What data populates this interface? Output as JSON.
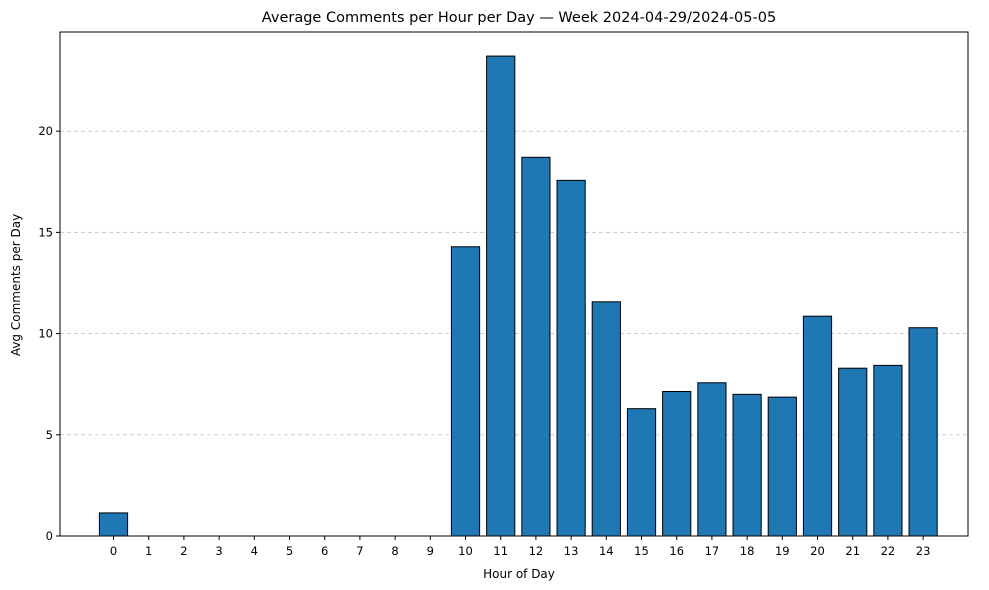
{
  "chart_data": {
    "type": "bar",
    "title": "Average Comments per Hour per Day — Week 2024-04-29/2024-05-05",
    "xlabel": "Hour of Day",
    "ylabel": "Avg Comments per Day",
    "categories": [
      "0",
      "1",
      "2",
      "3",
      "4",
      "5",
      "6",
      "7",
      "8",
      "9",
      "10",
      "11",
      "12",
      "13",
      "14",
      "15",
      "16",
      "17",
      "18",
      "19",
      "20",
      "21",
      "22",
      "23"
    ],
    "values": [
      1.14,
      0,
      0,
      0,
      0,
      0,
      0,
      0,
      0,
      0,
      14.29,
      23.71,
      18.71,
      17.57,
      11.57,
      6.29,
      7.14,
      7.57,
      7.0,
      6.86,
      10.86,
      8.29,
      8.43,
      10.29
    ],
    "ylim": [
      0,
      24.9
    ],
    "yticks": [
      0,
      5,
      10,
      15,
      20
    ],
    "grid": "y-dashed",
    "bar_color": "#1f77b4",
    "edge_color": "#000000",
    "grid_color": "#c8c8c8"
  }
}
